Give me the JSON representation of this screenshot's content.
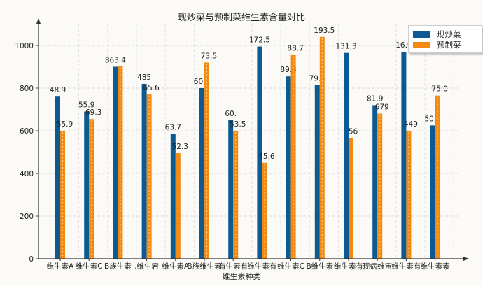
{
  "chart_data": {
    "type": "bar",
    "title": "现炒菜与预制菜维生素含量对比",
    "xlabel": "维生素种类",
    "ylabel": "",
    "ylim": [
      0,
      1100
    ],
    "yticks": [
      0,
      200,
      400,
      600,
      800,
      1000
    ],
    "grid": true,
    "legend_position": "upper right",
    "categories": [
      "维生素A",
      "维生素C",
      "B族生素",
      ".维生宕",
      "维生素A",
      "B族维生素",
      "有生素有",
      "维生素有",
      "维生素C",
      "B维生素",
      "维生素有",
      "现病维宙",
      "维生素有",
      "维生素素"
    ],
    "series": [
      {
        "name": "现炒菜",
        "color": "#0b5a94",
        "values": [
          760,
          690,
          900,
          820,
          585,
          800,
          650,
          995,
          855,
          815,
          965,
          720,
          970,
          625
        ],
        "labels": [
          "48.9",
          "55.9",
          "863.4",
          "485",
          "63.7",
          "60.2",
          "60.",
          "172.5",
          "89.3",
          "79.4",
          "131.3",
          "81.9",
          "16.9",
          "50.9"
        ]
      },
      {
        "name": "预制菜",
        "color": "#f28a12",
        "values": [
          600,
          655,
          905,
          770,
          495,
          920,
          600,
          450,
          955,
          1040,
          565,
          680,
          600,
          765
        ],
        "labels": [
          "55.9",
          "69.3",
          "",
          "65.6",
          "52.3",
          "73.5",
          "53.5",
          "45.6",
          "88.7",
          "193.5",
          "56",
          "679",
          "449",
          "75.0"
        ]
      }
    ]
  }
}
